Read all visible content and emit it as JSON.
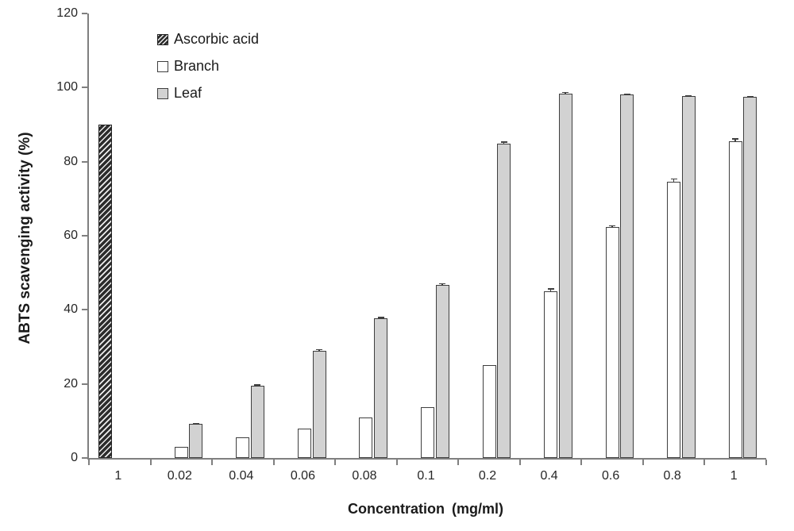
{
  "chart_data": {
    "type": "bar",
    "title": "",
    "xlabel": "Concentration (mg/ml)",
    "ylabel": "ABTS scavenging activity (%)",
    "ylim": [
      0,
      120
    ],
    "yticks": [
      0,
      20,
      40,
      60,
      80,
      100,
      120
    ],
    "grid": false,
    "legend_position": "top-left-inside",
    "categories": [
      "1",
      "0.02",
      "0.04",
      "0.06",
      "0.08",
      "0.1",
      "0.2",
      "0.4",
      "0.6",
      "0.8",
      "1"
    ],
    "series": [
      {
        "name": "Ascorbic acid",
        "style": "hatched",
        "values": [
          90,
          null,
          null,
          null,
          null,
          null,
          null,
          null,
          null,
          null,
          null
        ],
        "errors": [
          0,
          null,
          null,
          null,
          null,
          null,
          null,
          null,
          null,
          null,
          null
        ]
      },
      {
        "name": "Branch",
        "style": "white",
        "values": [
          null,
          3,
          5.5,
          8,
          11,
          13.8,
          25,
          45,
          62.3,
          74.5,
          85.5
        ],
        "errors": [
          null,
          0,
          0,
          0,
          0,
          0,
          0,
          0.8,
          0.5,
          1.0,
          0.8
        ]
      },
      {
        "name": "Leaf",
        "style": "gray",
        "values": [
          null,
          9.2,
          19.5,
          29,
          37.8,
          46.8,
          84.8,
          98.4,
          98.1,
          97.7,
          97.4
        ],
        "errors": [
          null,
          0.3,
          0.4,
          0.4,
          0.3,
          0.4,
          0.6,
          0.4,
          0.3,
          0.3,
          0.3
        ]
      }
    ]
  },
  "colors": {
    "axis": "#7f7f7f",
    "bar_border": "#3f3f3f",
    "leaf_fill": "#d2d2d2",
    "branch_fill": "#ffffff",
    "hatch_dark": "#2c2c2c",
    "hatch_light": "#ededed",
    "text": "#1a1a1a"
  }
}
